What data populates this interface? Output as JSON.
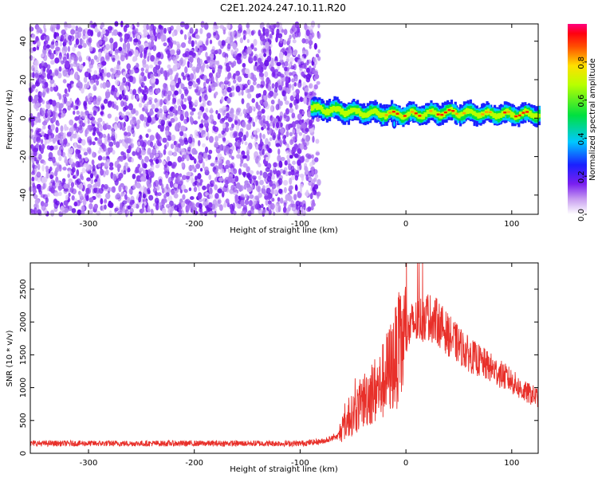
{
  "title": "C2E1.2024.247.10.11.R20",
  "chart_data": [
    {
      "type": "heatmap",
      "title": "C2E1.2024.247.10.11.R20",
      "xlabel": "Height of straight line (km)",
      "ylabel": "Frequency (Hz)",
      "xlim": [
        -355,
        125
      ],
      "ylim": [
        -50,
        49
      ],
      "x_ticks": [
        -300,
        -200,
        -100,
        0,
        100
      ],
      "y_ticks": [
        -40,
        -20,
        0,
        20,
        40
      ],
      "colorbar": {
        "label": "Normalized spectral amplitude",
        "range": [
          0.0,
          1.0
        ],
        "ticks": [
          0.0,
          0.2,
          0.4,
          0.6,
          0.8
        ],
        "colormap": "rainbow: white-violet-blue-cyan-green-yellow-red-magenta"
      },
      "regions": [
        {
          "x_range": [
            -355,
            -90
          ],
          "description_value": "scattered low amplitude 0.0-0.15 over full frequency range"
        },
        {
          "x_range": [
            -90,
            125
          ],
          "band_center_hz": [
            5,
            3,
            2,
            2,
            3,
            2,
            2
          ],
          "band_x": [
            -90,
            -45,
            -10,
            10,
            40,
            80,
            125
          ],
          "peak_amplitude": 0.9
        }
      ],
      "grid": false
    },
    {
      "type": "line",
      "xlabel": "Height of straight line (km)",
      "ylabel": "SNR (10 * v/v)",
      "xlim": [
        -355,
        125
      ],
      "ylim": [
        0,
        2900
      ],
      "x_ticks": [
        -300,
        -200,
        -100,
        0,
        100
      ],
      "y_ticks": [
        0,
        500,
        1000,
        1500,
        2000,
        2500
      ],
      "series": [
        {
          "color": "#e8302a",
          "x": [
            -355,
            -300,
            -250,
            -200,
            -150,
            -100,
            -80,
            -65,
            -55,
            -45,
            -35,
            -25,
            -15,
            -5,
            5,
            10,
            20,
            30,
            40,
            50,
            60,
            70,
            80,
            90,
            100,
            110,
            125
          ],
          "y": [
            150,
            150,
            150,
            150,
            150,
            150,
            180,
            250,
            500,
            700,
            900,
            1000,
            1300,
            1600,
            1950,
            2000,
            2100,
            2000,
            1800,
            1650,
            1500,
            1400,
            1300,
            1200,
            1100,
            950,
            850
          ]
        }
      ],
      "grid": false
    }
  ]
}
